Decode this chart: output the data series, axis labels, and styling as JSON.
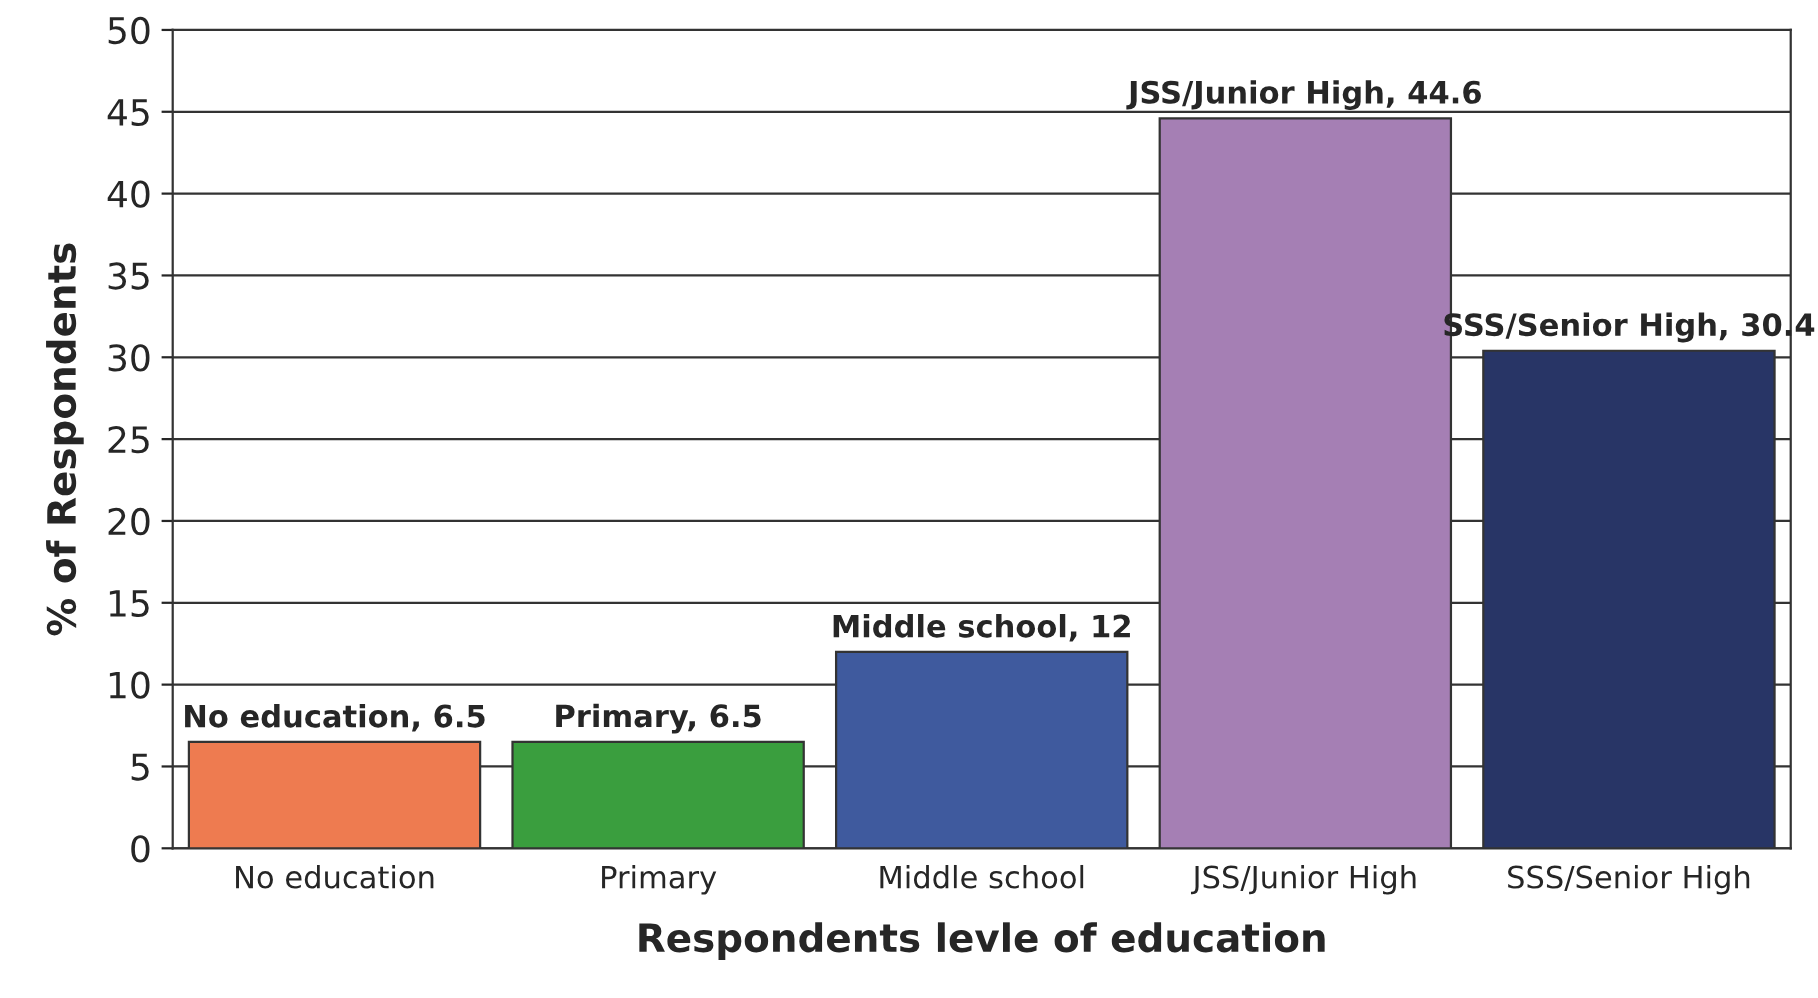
{
  "chart_data": {
    "type": "bar",
    "xlabel": "Respondents levle of education",
    "ylabel": "% of Respondents",
    "categories": [
      "No education",
      "Primary",
      "Middle school",
      "JSS/Junior High",
      "SSS/Senior High"
    ],
    "values": [
      6.5,
      6.5,
      12,
      44.6,
      30.4
    ],
    "colors": [
      "#ee7b50",
      "#3a9e3e",
      "#3f5a9e",
      "#a57fb4",
      "#283566"
    ],
    "value_labels": [
      "No education, 6.5",
      "Primary, 6.5",
      "Middle school, 12",
      "JSS/Junior High, 44.6",
      "SSS/Senior High, 30.4"
    ],
    "ylim": [
      0,
      50
    ],
    "yticks": [
      0,
      5,
      10,
      15,
      20,
      25,
      30,
      35,
      40,
      45,
      50
    ],
    "grid": "y",
    "legend": false
  }
}
